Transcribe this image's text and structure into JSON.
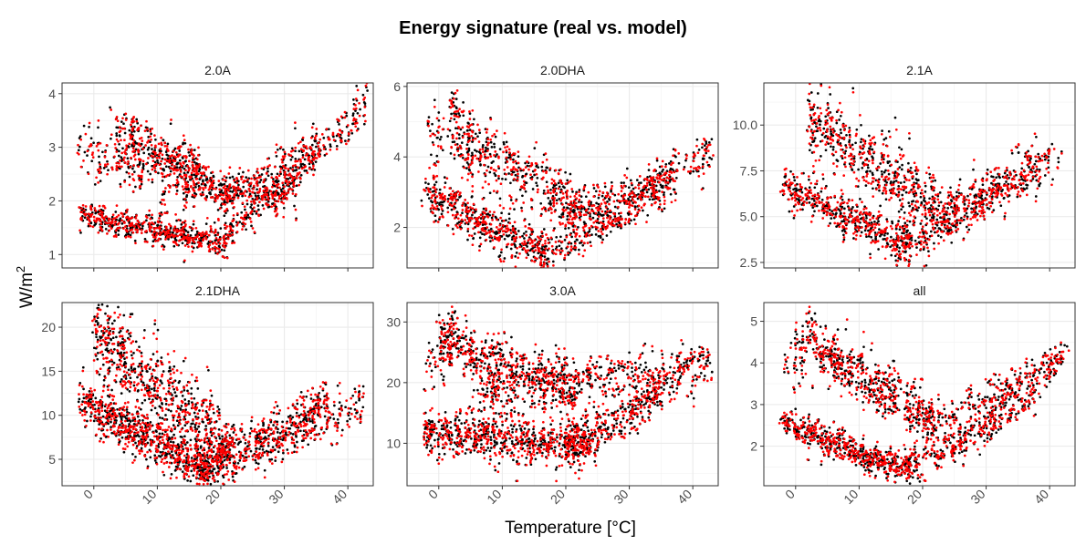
{
  "chart_data": {
    "type": "scatter",
    "title": "Energy signature (real vs. model)",
    "xlabel": "Temperature [°C]",
    "ylabel": "W/m",
    "ylabel_superscript": "2",
    "xlim": [
      -5,
      44
    ],
    "x_ticks": [
      0,
      10,
      20,
      30,
      40
    ],
    "series_names": [
      "real",
      "model"
    ],
    "colors": {
      "real": "#000000",
      "model": "#ff0000",
      "panel_border": "#333333",
      "grid": "#ebebeb",
      "strip_bg": "#ffffff"
    },
    "panels": [
      {
        "title": "2.0A",
        "ylim": [
          0.75,
          4.2
        ],
        "y_ticks": [
          1,
          2,
          3,
          4
        ],
        "y_tick_labels": [
          "1",
          "2",
          "3",
          "4"
        ],
        "branches": [
          {
            "x0": -2,
            "x1": 21,
            "y0": 1.75,
            "y1": 1.2,
            "curv": 0.03,
            "spread": 0.12,
            "n": 330
          },
          {
            "x0": 19,
            "x1": 36,
            "y0": 1.25,
            "y1": 3.0,
            "curv": 0.25,
            "spread": 0.15,
            "n": 140
          },
          {
            "x0": -2,
            "x1": 22,
            "y0": 2.95,
            "y1": 2.15,
            "curv": 0.05,
            "spread": 0.2,
            "n": 210
          },
          {
            "x0": 3,
            "x1": 17,
            "y0": 3.4,
            "y1": 2.6,
            "curv": 0.0,
            "spread": 0.2,
            "n": 160
          },
          {
            "x0": 20,
            "x1": 43,
            "y0": 2.05,
            "y1": 3.8,
            "curv": 0.4,
            "spread": 0.2,
            "n": 200
          },
          {
            "x0": 13,
            "x1": 32,
            "y0": 2.3,
            "y1": 2.05,
            "curv": 0.0,
            "spread": 0.15,
            "n": 120
          }
        ]
      },
      {
        "title": "2.0DHA",
        "ylim": [
          0.85,
          6.1
        ],
        "y_ticks": [
          2,
          4,
          6
        ],
        "y_tick_labels": [
          "2",
          "4",
          "6"
        ],
        "branches": [
          {
            "x0": -2,
            "x1": 17,
            "y0": 3.0,
            "y1": 1.25,
            "curv": 0.1,
            "spread": 0.3,
            "n": 300
          },
          {
            "x0": 16,
            "x1": 37,
            "y0": 1.3,
            "y1": 3.4,
            "curv": 0.3,
            "spread": 0.3,
            "n": 200
          },
          {
            "x0": 2,
            "x1": 23,
            "y0": 4.7,
            "y1": 2.5,
            "curv": 0.1,
            "spread": 0.4,
            "n": 280
          },
          {
            "x0": 20,
            "x1": 43,
            "y0": 2.35,
            "y1": 4.2,
            "curv": 0.4,
            "spread": 0.3,
            "n": 180
          },
          {
            "x0": -2,
            "x1": 3,
            "y0": 4.5,
            "y1": 5.5,
            "curv": 0.0,
            "spread": 0.6,
            "n": 40
          }
        ]
      },
      {
        "title": "2.1A",
        "ylim": [
          2.2,
          12.3
        ],
        "y_ticks": [
          2.5,
          5.0,
          7.5,
          10.0
        ],
        "y_tick_labels": [
          "2.5",
          "5.0",
          "7.5",
          "10.0"
        ],
        "branches": [
          {
            "x0": -2,
            "x1": 18,
            "y0": 6.8,
            "y1": 3.5,
            "curv": 0.1,
            "spread": 0.5,
            "n": 300
          },
          {
            "x0": 16,
            "x1": 38,
            "y0": 3.4,
            "y1": 8.0,
            "curv": 0.3,
            "spread": 0.55,
            "n": 200
          },
          {
            "x0": 2,
            "x1": 22,
            "y0": 10.5,
            "y1": 5.5,
            "curv": 0.1,
            "spread": 0.9,
            "n": 300
          },
          {
            "x0": 20,
            "x1": 42,
            "y0": 5.3,
            "y1": 8.3,
            "curv": 0.4,
            "spread": 0.6,
            "n": 160
          }
        ]
      },
      {
        "title": "2.1DHA",
        "ylim": [
          2.0,
          22.8
        ],
        "y_ticks": [
          5,
          10,
          15,
          20
        ],
        "y_tick_labels": [
          "5",
          "10",
          "15",
          "20"
        ],
        "branches": [
          {
            "x0": -2,
            "x1": 18,
            "y0": 12.0,
            "y1": 3.8,
            "curv": 0.1,
            "spread": 1.3,
            "n": 420
          },
          {
            "x0": 0,
            "x1": 22,
            "y0": 19.5,
            "y1": 5.5,
            "curv": 0.0,
            "spread": 2.2,
            "n": 420
          },
          {
            "x0": 16,
            "x1": 37,
            "y0": 4.0,
            "y1": 12.0,
            "curv": 0.35,
            "spread": 1.2,
            "n": 260
          },
          {
            "x0": 20,
            "x1": 43,
            "y0": 5.8,
            "y1": 11.5,
            "curv": 0.4,
            "spread": 1.1,
            "n": 140
          }
        ]
      },
      {
        "title": "3.0A",
        "ylim": [
          3.0,
          33.2
        ],
        "y_ticks": [
          10,
          20,
          30
        ],
        "y_tick_labels": [
          "10",
          "20",
          "30"
        ],
        "branches": [
          {
            "x0": -2,
            "x1": 24,
            "y0": 12.0,
            "y1": 9.5,
            "curv": 0.05,
            "spread": 1.8,
            "n": 440
          },
          {
            "x0": 20,
            "x1": 38,
            "y0": 10.0,
            "y1": 21.0,
            "curv": 0.3,
            "spread": 1.8,
            "n": 220
          },
          {
            "x0": 0,
            "x1": 22,
            "y0": 27.0,
            "y1": 18.5,
            "curv": 0.0,
            "spread": 2.2,
            "n": 300
          },
          {
            "x0": 5,
            "x1": 43,
            "y0": 18.5,
            "y1": 22.5,
            "curv": 0.0,
            "spread": 2.0,
            "n": 300
          },
          {
            "x0": -2,
            "x1": 3,
            "y0": 23.0,
            "y1": 30.0,
            "curv": 0.0,
            "spread": 2.5,
            "n": 40
          }
        ]
      },
      {
        "title": "all",
        "ylim": [
          1.05,
          5.45
        ],
        "y_ticks": [
          2,
          3,
          4,
          5
        ],
        "y_tick_labels": [
          "2",
          "3",
          "4",
          "5"
        ],
        "branches": [
          {
            "x0": -2,
            "x1": 18,
            "y0": 2.6,
            "y1": 1.45,
            "curv": 0.1,
            "spread": 0.18,
            "n": 330
          },
          {
            "x0": 16,
            "x1": 38,
            "y0": 1.4,
            "y1": 3.3,
            "curv": 0.3,
            "spread": 0.2,
            "n": 220
          },
          {
            "x0": 2,
            "x1": 22,
            "y0": 4.5,
            "y1": 2.6,
            "curv": 0.1,
            "spread": 0.3,
            "n": 320
          },
          {
            "x0": 20,
            "x1": 43,
            "y0": 2.55,
            "y1": 4.3,
            "curv": 0.4,
            "spread": 0.22,
            "n": 180
          },
          {
            "x0": -2,
            "x1": 3,
            "y0": 3.6,
            "y1": 4.8,
            "curv": 0.0,
            "spread": 0.35,
            "n": 40
          }
        ]
      }
    ]
  }
}
